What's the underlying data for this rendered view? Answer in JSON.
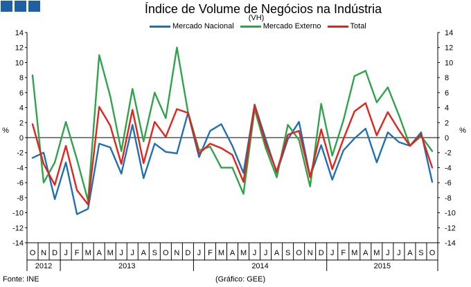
{
  "chart_data": {
    "type": "line",
    "title": "Índice de Volume de Negócios na Indústria",
    "subtitle": "(VH)",
    "ylabel": "%",
    "ylabel_right": "%",
    "ylim": [
      -14,
      14
    ],
    "yticks": [
      14,
      12,
      10,
      8,
      6,
      4,
      2,
      0,
      -2,
      -4,
      -6,
      -8,
      -10,
      -12,
      -14
    ],
    "month_labels": [
      "O",
      "N",
      "D",
      "J",
      "F",
      "M",
      "A",
      "M",
      "J",
      "J",
      "A",
      "S",
      "O",
      "N",
      "D",
      "J",
      "F",
      "M",
      "A",
      "M",
      "J",
      "J",
      "A",
      "S",
      "O",
      "N",
      "D",
      "J",
      "F",
      "M",
      "A",
      "M",
      "J",
      "J",
      "A",
      "S",
      "O"
    ],
    "year_groups": [
      {
        "label": "2012",
        "start": 0,
        "count": 3
      },
      {
        "label": "2013",
        "start": 3,
        "count": 12
      },
      {
        "label": "2014",
        "start": 15,
        "count": 12
      },
      {
        "label": "2015",
        "start": 27,
        "count": 10
      }
    ],
    "series": [
      {
        "name": "Mercado Nacional",
        "color": "#1f6fb4",
        "values": [
          -2.7,
          -2.0,
          -8.2,
          -3.3,
          -10.2,
          -9.5,
          -0.8,
          -1.3,
          -4.8,
          1.7,
          -5.4,
          -0.8,
          -1.9,
          -2.1,
          3.3,
          -2.6,
          0.9,
          1.8,
          -1.1,
          -4.7,
          4.4,
          -0.2,
          -4.7,
          -0.2,
          2.1,
          -5.2,
          -1.0,
          -5.6,
          -1.7,
          -0.1,
          1.2,
          -3.3,
          0.7,
          -0.6,
          -1.1,
          0.7,
          -5.9
        ]
      },
      {
        "name": "Mercado Externo",
        "color": "#2ea44a",
        "values": [
          8.3,
          -6.0,
          -3.3,
          2.1,
          -2.9,
          -8.4,
          11.0,
          5.5,
          -1.8,
          6.5,
          -0.5,
          6.0,
          2.6,
          12.0,
          3.4,
          -1.7,
          -1.2,
          -4.0,
          -4.0,
          -7.5,
          3.8,
          -1.4,
          -5.3,
          1.7,
          -0.3,
          -6.5,
          4.5,
          -2.4,
          2.3,
          8.2,
          8.9,
          4.7,
          6.7,
          3.0,
          -1.1,
          0.2,
          -1.8
        ]
      },
      {
        "name": "Total",
        "color": "#e2231a",
        "values": [
          1.8,
          -3.5,
          -6.3,
          -1.1,
          -7.0,
          -8.9,
          4.1,
          1.6,
          -3.5,
          3.7,
          -3.4,
          2.1,
          0.1,
          3.8,
          3.3,
          -2.1,
          -0.8,
          -1.4,
          -2.3,
          -5.9,
          4.3,
          -0.8,
          -4.5,
          0.4,
          0.9,
          -5.3,
          1.1,
          -4.2,
          -0.2,
          3.5,
          4.6,
          0.3,
          3.4,
          1.0,
          -1.1,
          0.4,
          -4.0
        ]
      }
    ]
  },
  "footer": {
    "source": "Fonte: INE",
    "credit": "(Gráfico: GEE)"
  },
  "colors": {
    "logo": "#1f5fa6",
    "zero_line": "#000000",
    "axis": "#000000"
  }
}
